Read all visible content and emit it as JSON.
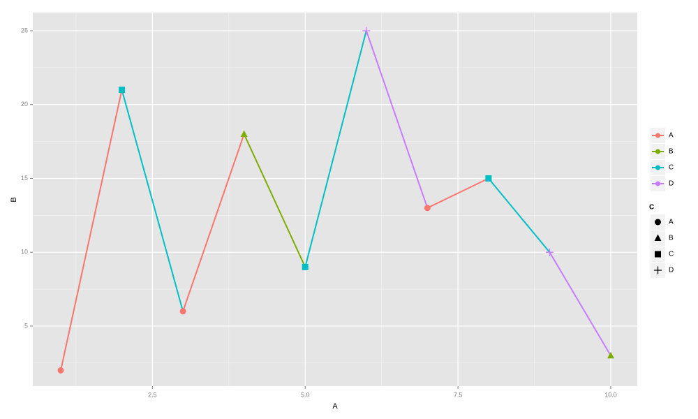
{
  "chart_data": {
    "type": "line",
    "x_label": "A",
    "y_label": "B",
    "x": [
      1,
      2,
      3,
      4,
      5,
      6,
      7,
      8,
      9,
      10
    ],
    "values": [
      2,
      21,
      6,
      18,
      9,
      25,
      13,
      15,
      10,
      3
    ],
    "groups": [
      "A",
      "C",
      "A",
      "B",
      "C",
      "D",
      "A",
      "C",
      "D",
      "B"
    ],
    "xlim": [
      0.543,
      10.434
    ],
    "ylim": [
      0.93,
      26.23
    ],
    "xticks": [
      2.5,
      {
        "value": 5,
        "label": "5.0"
      },
      7.5,
      {
        "value": 10,
        "label": "10.0"
      }
    ],
    "yticks": [
      5,
      10,
      15,
      20,
      25
    ],
    "grid": true,
    "color_legend": {
      "entries": [
        "A",
        "B",
        "C",
        "D"
      ],
      "colors": [
        "#F8766D",
        "#7CAE00",
        "#00BFC4",
        "#C77CFF"
      ]
    },
    "shape_legend": {
      "title": "C",
      "entries": [
        "A",
        "B",
        "C",
        "D"
      ],
      "shapes": [
        "circle",
        "triangle",
        "square",
        "plus"
      ]
    }
  }
}
